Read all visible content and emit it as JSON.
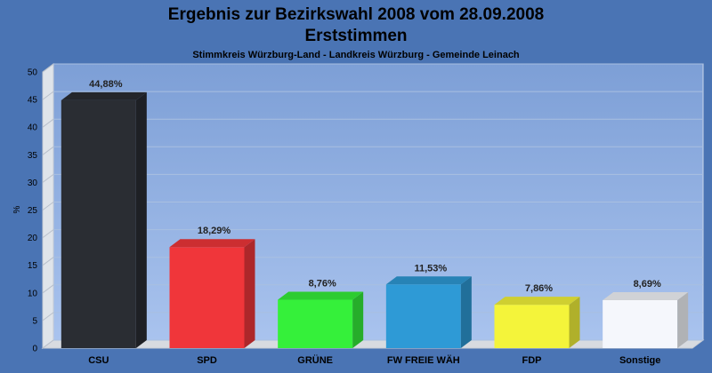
{
  "chart_data": {
    "type": "bar",
    "title": "Ergebnis zur Bezirkswahl 2008 vom 28.09.2008",
    "subtitle": "Erststimmen",
    "caption": "Stimmkreis Würzburg-Land - Landkreis Würzburg - Gemeinde Leinach",
    "ylabel": "%",
    "ylim": [
      0,
      50
    ],
    "yticks": [
      "0",
      "5",
      "10",
      "15",
      "20",
      "25",
      "30",
      "35",
      "40",
      "45",
      "50"
    ],
    "categories": [
      "CSU",
      "SPD",
      "GRÜNE",
      "FW FREIE WÄH",
      "FDP",
      "Sonstige"
    ],
    "values": [
      44.88,
      18.29,
      8.76,
      11.53,
      7.86,
      8.69
    ],
    "value_labels": [
      "44,88%",
      "18,29%",
      "8,76%",
      "11,53%",
      "7,86%",
      "8,69%"
    ],
    "colors": [
      "#2a2d33",
      "#f0363a",
      "#35f03a",
      "#2e9ad6",
      "#f4f43a",
      "#f5f7fc"
    ],
    "grid": true
  }
}
